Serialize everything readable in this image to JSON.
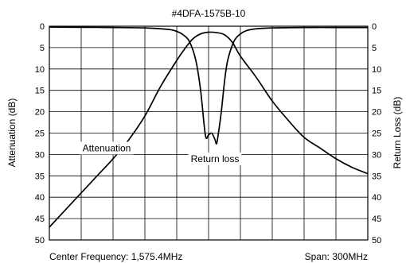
{
  "chart_data": {
    "type": "line",
    "title": "#4DFA-1575B-10",
    "ylabel": "Attenuation (dB)",
    "ylabel_right": "Return Loss (dB)",
    "footer_left": "Center Frequency: 1,575.4MHz",
    "footer_right": "Span: 300MHz",
    "x_divisions": 10,
    "ylim": [
      0,
      50
    ],
    "y_inverted": true,
    "yticks": [
      0,
      5,
      10,
      15,
      20,
      25,
      30,
      35,
      40,
      45,
      50
    ],
    "grid": true,
    "series": [
      {
        "name": "Attenuation",
        "x": [
          0,
          0.5,
          1,
          1.5,
          2,
          2.5,
          3,
          3.5,
          4,
          4.25,
          4.5,
          4.75,
          5,
          5.25,
          5.5,
          5.75,
          6,
          6.5,
          7,
          7.5,
          8,
          8.5,
          9,
          9.5,
          10
        ],
        "y": [
          47,
          43,
          39,
          35,
          31,
          26.5,
          21,
          14,
          8,
          5.3,
          3,
          1.8,
          1.4,
          1.5,
          2,
          3.8,
          7,
          12,
          17.5,
          22,
          26,
          28.5,
          31,
          33,
          34.5
        ]
      },
      {
        "name": "Return loss",
        "x": [
          0,
          1,
          2,
          3,
          3.5,
          3.8,
          4,
          4.2,
          4.4,
          4.6,
          4.75,
          4.9,
          5,
          5.1,
          5.2,
          5.25,
          5.3,
          5.4,
          5.5,
          5.6,
          5.8,
          6,
          6.2,
          6.5,
          7,
          8,
          9,
          10
        ],
        "y": [
          0.2,
          0.25,
          0.3,
          0.4,
          0.6,
          0.8,
          1.2,
          2,
          3.6,
          8,
          15,
          25.5,
          25.4,
          25,
          26.5,
          27.5,
          25.5,
          20,
          13,
          8,
          3.5,
          1.8,
          1,
          0.6,
          0.4,
          0.3,
          0.3,
          0.3
        ]
      }
    ],
    "annotations": [
      {
        "text": "Attenuation",
        "x": 1.8,
        "y": 28.5
      },
      {
        "text": "Return loss",
        "x": 5.2,
        "y": 31
      }
    ]
  }
}
